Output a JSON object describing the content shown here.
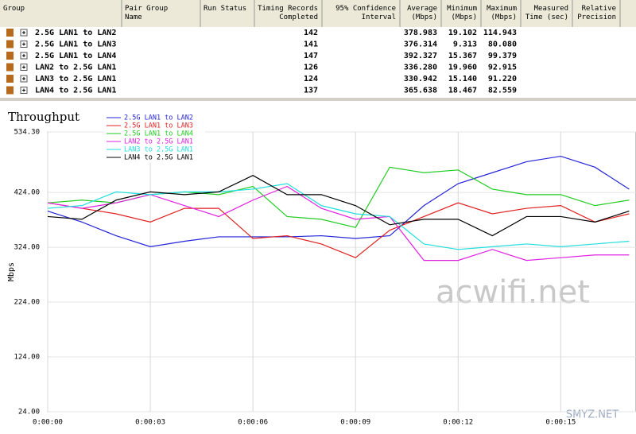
{
  "table": {
    "headers": [
      "Group",
      "Pair Group\nName",
      "Run Status",
      "Timing Records\nCompleted",
      "95% Confidence\nInterval",
      "Average\n(Mbps)",
      "Minimum\n(Mbps)",
      "Maximum\n(Mbps)",
      "Measured\nTime (sec)",
      "Relative\nPrecision"
    ],
    "rows": [
      [
        "2.5G LAN1 to LAN2",
        "142",
        "378.983",
        "19.102",
        "114.943"
      ],
      [
        "2.5G LAN1 to LAN3",
        "141",
        "376.314",
        "9.313",
        "80.080"
      ],
      [
        "2.5G LAN1 to LAN4",
        "147",
        "392.327",
        "15.367",
        "99.379"
      ],
      [
        "LAN2 to 2.5G LAN1",
        "126",
        "336.280",
        "19.960",
        "92.915"
      ],
      [
        "LAN3 to 2.5G LAN1",
        "124",
        "330.942",
        "15.140",
        "91.220"
      ],
      [
        "LAN4 to 2.5G LAN1",
        "137",
        "365.638",
        "18.467",
        "82.559"
      ]
    ]
  },
  "chart_data": {
    "type": "line",
    "title": "Throughput",
    "y_label": "Mbps",
    "x": [
      0,
      1,
      2,
      3,
      4,
      5,
      6,
      7,
      8,
      9,
      10,
      11,
      12,
      13,
      14,
      15,
      16,
      17
    ],
    "xlim": [
      0,
      17.2
    ],
    "xticks": [
      {
        "value": 0,
        "label": "0:00:00"
      },
      {
        "value": 3,
        "label": "0:00:03"
      },
      {
        "value": 6,
        "label": "0:00:06"
      },
      {
        "value": 9,
        "label": "0:00:09"
      },
      {
        "value": 12,
        "label": "0:00:12"
      },
      {
        "value": 15,
        "label": "0:00:15"
      }
    ],
    "ylim": [
      24,
      534.3
    ],
    "yticks": [
      {
        "value": 24,
        "label": "24.00"
      },
      {
        "value": 124,
        "label": "124.00"
      },
      {
        "value": 224,
        "label": "224.00"
      },
      {
        "value": 324,
        "label": "324.00"
      },
      {
        "value": 424,
        "label": "424.00"
      },
      {
        "value": 534.3,
        "label": "534.30"
      }
    ],
    "grid": true,
    "series": [
      {
        "name": "2.5G LAN1 to LAN2",
        "color": "#2424d8",
        "values": [
          390,
          370,
          345,
          325,
          335,
          343,
          343,
          343,
          345,
          340,
          345,
          400,
          440,
          460,
          480,
          490,
          470,
          430
        ]
      },
      {
        "name": "2.5G LAN1 to LAN3",
        "color": "#e02020",
        "values": [
          405,
          395,
          385,
          370,
          395,
          395,
          340,
          345,
          330,
          305,
          355,
          380,
          405,
          385,
          395,
          400,
          370,
          385
        ]
      },
      {
        "name": "2.5G LAN1 to LAN4",
        "color": "#22cc22",
        "values": [
          405,
          410,
          405,
          420,
          425,
          420,
          435,
          380,
          375,
          360,
          470,
          460,
          465,
          430,
          420,
          420,
          400,
          410
        ]
      },
      {
        "name": "LAN2 to 2.5G LAN1",
        "color": "#e020e0",
        "values": [
          405,
          395,
          405,
          420,
          400,
          380,
          410,
          435,
          395,
          375,
          380,
          300,
          300,
          320,
          300,
          305,
          310,
          310
        ]
      },
      {
        "name": "LAN3 to 2.5G LAN1",
        "color": "#20dede",
        "values": [
          395,
          400,
          425,
          420,
          425,
          425,
          430,
          440,
          400,
          385,
          380,
          330,
          320,
          325,
          330,
          325,
          330,
          335
        ]
      },
      {
        "name": "LAN4 to 2.5G LAN1",
        "color": "#000000",
        "values": [
          380,
          375,
          410,
          425,
          420,
          425,
          455,
          420,
          420,
          400,
          365,
          375,
          375,
          345,
          380,
          380,
          370,
          390
        ]
      }
    ]
  },
  "watermarks": [
    "acwifi.net",
    "SMYZ.NET"
  ]
}
